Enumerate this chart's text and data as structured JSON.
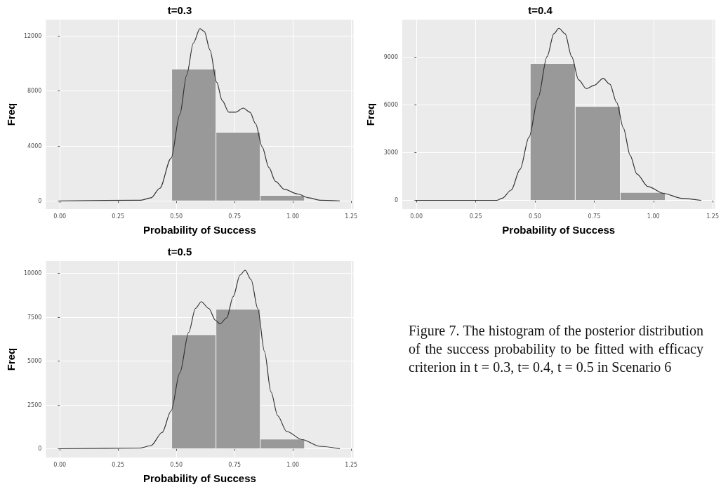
{
  "chart_data": [
    {
      "type": "histogram",
      "title": "t=0.3",
      "xlabel": "Probability of Success",
      "ylabel": "Freq",
      "grid": true,
      "bins": [
        0.48,
        0.67,
        0.86,
        1.05
      ],
      "xlim": [
        -0.06,
        1.26
      ],
      "ylim": [
        -600,
        13200
      ],
      "xticks": [
        {
          "value": 0,
          "label": "0.00"
        },
        {
          "value": 0.25,
          "label": "0.25"
        },
        {
          "value": 0.5,
          "label": "0.50"
        },
        {
          "value": 0.75,
          "label": "0.75"
        },
        {
          "value": 1,
          "label": "1.00"
        },
        {
          "value": 1.25,
          "label": "1.25"
        }
      ],
      "yticks": [
        0,
        4000,
        8000,
        12000
      ],
      "series": [
        {
          "type": "histogram",
          "color": "#999999",
          "values": [
            9600,
            5000,
            400
          ]
        },
        {
          "type": "line",
          "color": "#333333",
          "x": [
            0,
            0.347,
            0.391,
            0.429,
            0.477,
            0.515,
            0.544,
            0.573,
            0.601,
            0.62,
            0.644,
            0.673,
            0.697,
            0.725,
            0.754,
            0.787,
            0.816,
            0.84,
            0.868,
            0.897,
            0.925,
            0.964,
            1.021,
            1.069,
            1.116,
            1.2
          ],
          "values": [
            0,
            50,
            220,
            920,
            3100,
            6300,
            9150,
            11500,
            12540,
            12340,
            11000,
            8640,
            7300,
            6460,
            6460,
            6760,
            6460,
            5620,
            3940,
            2430,
            1430,
            840,
            500,
            220,
            50,
            0
          ]
        }
      ]
    },
    {
      "type": "histogram",
      "title": "t=0.4",
      "xlabel": "Probability of Success",
      "ylabel": "Freq",
      "grid": true,
      "bins": [
        0.48,
        0.67,
        0.86,
        1.05
      ],
      "xlim": [
        -0.06,
        1.26
      ],
      "ylim": [
        -550,
        11350
      ],
      "xticks": [
        {
          "value": 0,
          "label": "0.00"
        },
        {
          "value": 0.25,
          "label": "0.25"
        },
        {
          "value": 0.5,
          "label": "0.50"
        },
        {
          "value": 0.75,
          "label": "0.75"
        },
        {
          "value": 1,
          "label": "1.00"
        },
        {
          "value": 1.25,
          "label": "1.25"
        }
      ],
      "yticks": [
        0,
        3000,
        6000,
        9000
      ],
      "series": [
        {
          "type": "histogram",
          "color": "#999999",
          "values": [
            8600,
            5900,
            500
          ]
        },
        {
          "type": "line",
          "color": "#333333",
          "x": [
            0,
            0.338,
            0.362,
            0.4,
            0.437,
            0.475,
            0.513,
            0.551,
            0.58,
            0.601,
            0.627,
            0.655,
            0.684,
            0.717,
            0.75,
            0.788,
            0.816,
            0.845,
            0.873,
            0.902,
            0.93,
            0.977,
            1.044,
            1.119,
            1.2
          ],
          "values": [
            0,
            0,
            140,
            650,
            1950,
            3970,
            6430,
            9030,
            10470,
            10810,
            10470,
            9030,
            7580,
            7010,
            7220,
            7660,
            7300,
            6140,
            4550,
            2820,
            1660,
            870,
            430,
            130,
            0
          ]
        }
      ]
    },
    {
      "type": "histogram",
      "title": "t=0.5",
      "xlabel": "Probability of Success",
      "ylabel": "Freq",
      "grid": true,
      "bins": [
        0.48,
        0.67,
        0.86,
        1.05
      ],
      "xlim": [
        -0.06,
        1.26
      ],
      "ylim": [
        -500,
        10700
      ],
      "xticks": [
        {
          "value": 0,
          "label": "0.00"
        },
        {
          "value": 0.25,
          "label": "0.25"
        },
        {
          "value": 0.5,
          "label": "0.50"
        },
        {
          "value": 0.75,
          "label": "0.75"
        },
        {
          "value": 1,
          "label": "1.00"
        },
        {
          "value": 1.25,
          "label": "1.25"
        }
      ],
      "yticks": [
        0,
        2500,
        5000,
        7500,
        10000
      ],
      "series": [
        {
          "type": "histogram",
          "color": "#999999",
          "values": [
            6500,
            7950,
            550
          ]
        },
        {
          "type": "line",
          "color": "#333333",
          "x": [
            0,
            0.344,
            0.391,
            0.439,
            0.477,
            0.515,
            0.553,
            0.582,
            0.607,
            0.639,
            0.668,
            0.687,
            0.716,
            0.744,
            0.773,
            0.795,
            0.821,
            0.849,
            0.878,
            0.906,
            0.935,
            0.973,
            1.04,
            1.116,
            1.2
          ],
          "values": [
            0,
            40,
            180,
            930,
            2150,
            4330,
            6640,
            8000,
            8380,
            8000,
            7320,
            7120,
            7460,
            8680,
            9900,
            10180,
            9630,
            8000,
            5550,
            3240,
            1880,
            990,
            520,
            140,
            0
          ]
        }
      ]
    },
    {
      "type": "other",
      "annotations": [
        "Figure 7. The histogram of the posterior distribution of the success probability to be fitted with efficacy criterion in  t = 0.3, t= 0.4,  t = 0.5  in Scenario 6"
      ]
    }
  ]
}
